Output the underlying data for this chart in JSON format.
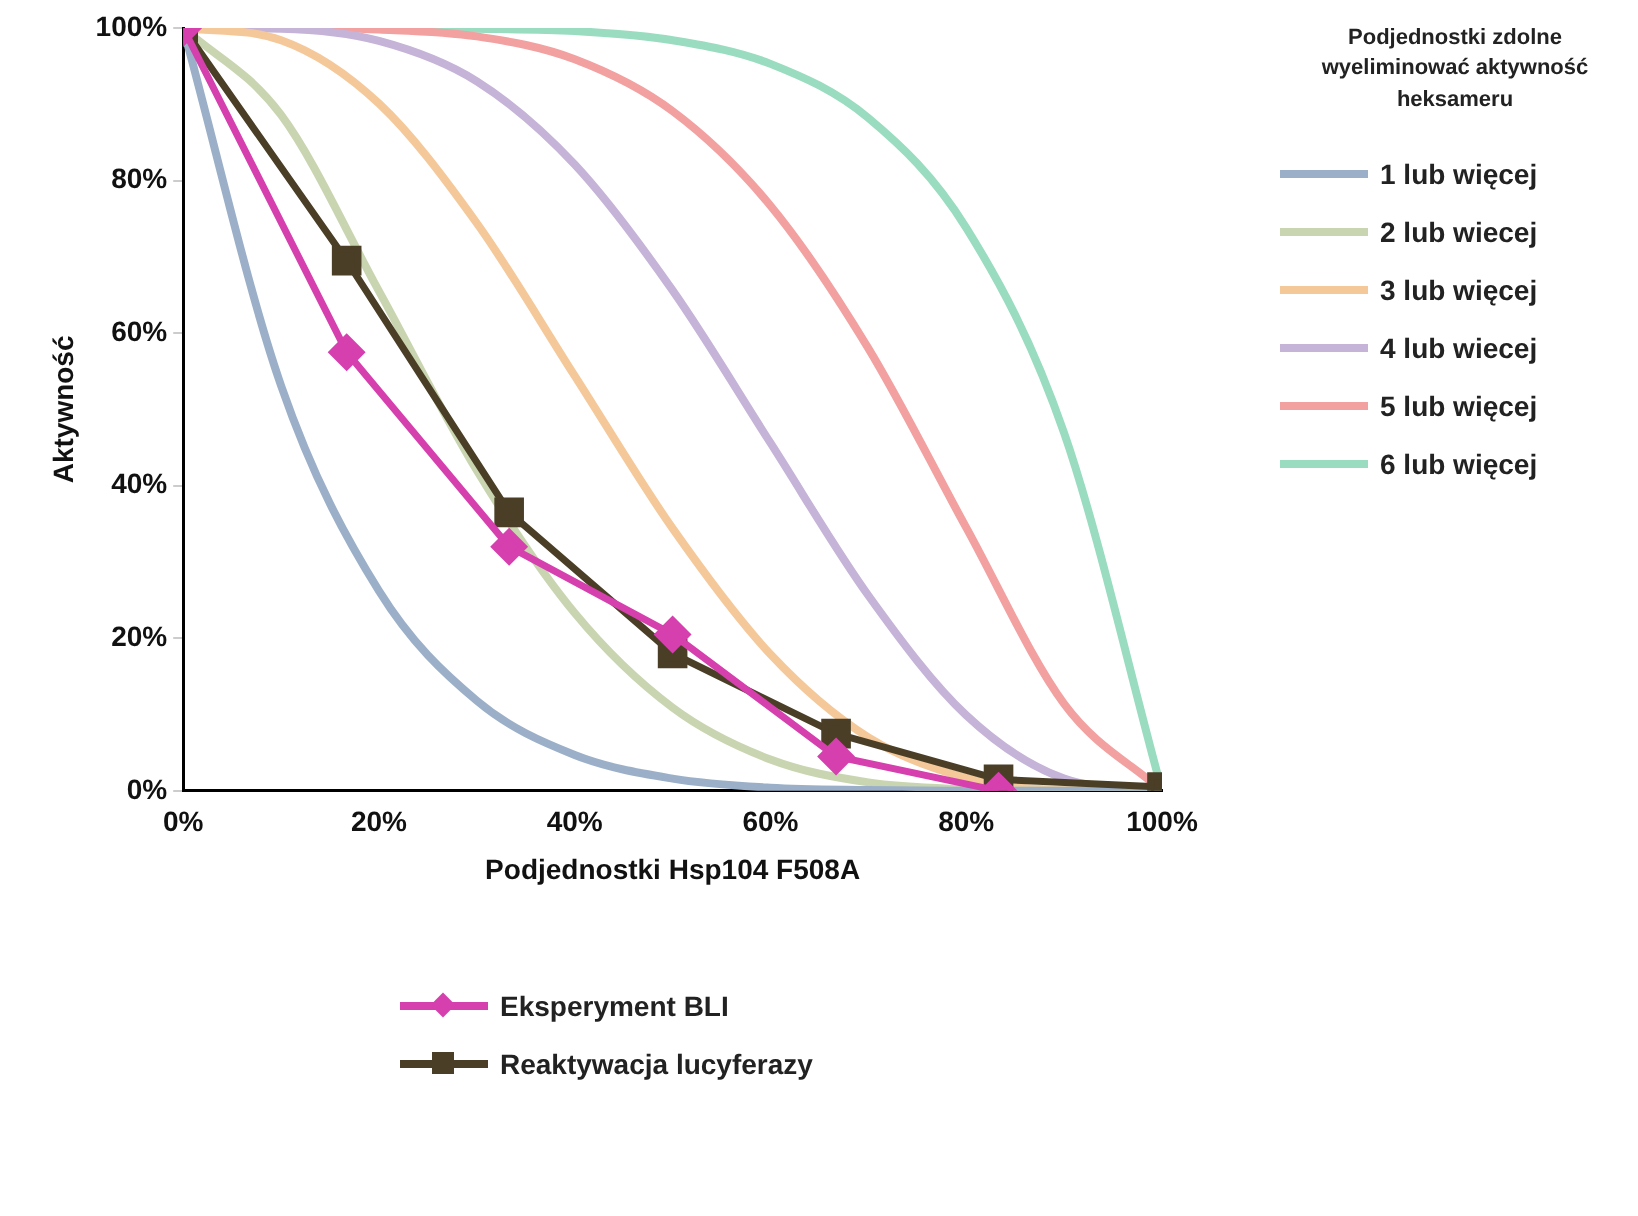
{
  "chart_data": {
    "type": "line",
    "xlabel": "Podjednostki Hsp104 F508A",
    "ylabel": "Aktywność",
    "legend_title": "Podjednostki zdolne wyeliminować aktywność heksameru",
    "legend": "right",
    "xlim": [
      0,
      100
    ],
    "xticks": [
      {
        "value": 0,
        "label": "0%"
      },
      {
        "value": 20,
        "label": "20%"
      },
      {
        "value": 40,
        "label": "40%"
      },
      {
        "value": 60,
        "label": "60%"
      },
      {
        "value": 80,
        "label": "80%"
      },
      {
        "value": 100,
        "label": "100%"
      }
    ],
    "ylim": [
      0,
      100
    ],
    "yticks": [
      {
        "value": 0,
        "label": "0%"
      },
      {
        "value": 20,
        "label": "20%"
      },
      {
        "value": 40,
        "label": "40%"
      },
      {
        "value": 60,
        "label": "60%"
      },
      {
        "value": 80,
        "label": "80%"
      },
      {
        "value": 100,
        "label": "100%"
      }
    ],
    "grid": false,
    "series": [
      {
        "name": "1 lub więcej",
        "color": "#9bb0c8",
        "marker": "none",
        "x": [
          0,
          10,
          20,
          30,
          40,
          50,
          60,
          70,
          80,
          90,
          100
        ],
        "values": [
          100,
          53.1,
          26.2,
          11.8,
          4.7,
          1.6,
          0.4,
          0.1,
          0,
          0,
          0
        ]
      },
      {
        "name": "2 lub wiecej",
        "color": "#c9d5b0",
        "marker": "none",
        "x": [
          0,
          10,
          20,
          30,
          40,
          50,
          60,
          70,
          80,
          90,
          100
        ],
        "values": [
          100,
          88.6,
          65.5,
          42.0,
          23.3,
          10.9,
          4.1,
          1.1,
          0.2,
          0,
          0
        ]
      },
      {
        "name": "3 lub więcej",
        "color": "#f5c89a",
        "marker": "none",
        "x": [
          0,
          10,
          20,
          30,
          40,
          50,
          60,
          70,
          80,
          90,
          100
        ],
        "values": [
          100,
          98.4,
          90.1,
          74.4,
          54.4,
          34.4,
          17.9,
          7.0,
          1.7,
          0.1,
          0
        ]
      },
      {
        "name": "4 lub wiecej",
        "color": "#c5b3d8",
        "marker": "none",
        "x": [
          0,
          10,
          20,
          30,
          40,
          50,
          60,
          70,
          80,
          90,
          100
        ],
        "values": [
          100,
          99.9,
          98.3,
          93.0,
          82.1,
          65.6,
          45.6,
          25.6,
          9.9,
          1.6,
          0
        ]
      },
      {
        "name": "5 lub więcej",
        "color": "#f2a0a0",
        "marker": "none",
        "x": [
          0,
          10,
          20,
          30,
          40,
          50,
          60,
          70,
          80,
          90,
          100
        ],
        "values": [
          100,
          100,
          99.8,
          98.9,
          95.9,
          89.1,
          76.7,
          58.0,
          34.5,
          11.4,
          0
        ]
      },
      {
        "name": "6 lub więcej",
        "color": "#99dcc0",
        "marker": "none",
        "x": [
          0,
          10,
          20,
          30,
          40,
          50,
          60,
          70,
          80,
          90,
          100
        ],
        "values": [
          100,
          100,
          100,
          99.9,
          99.6,
          98.4,
          95.3,
          88.2,
          73.8,
          46.9,
          0
        ]
      },
      {
        "name": "Eksperyment BLI",
        "color": "#d63fae",
        "marker": "diamond",
        "x": [
          0,
          16.7,
          33.3,
          50,
          66.7,
          83.3
        ],
        "values": [
          100,
          57.5,
          32,
          20.5,
          4.5,
          0
        ]
      },
      {
        "name": "Reaktywacja lucyferazy",
        "color": "#4a3f26",
        "marker": "square",
        "x": [
          0,
          16.7,
          33.3,
          50,
          66.7,
          83.3,
          100
        ],
        "values": [
          100,
          69.5,
          36.5,
          18,
          7.5,
          1.5,
          0.5
        ]
      }
    ]
  }
}
